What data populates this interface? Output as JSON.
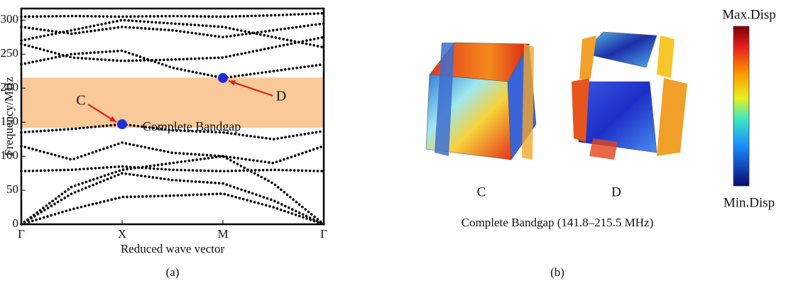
{
  "chart_data": {
    "type": "line",
    "ylabel": "Frequency/MHz",
    "xlabel": "Reduced wave vector",
    "panel_label": "(a)",
    "x": [
      0,
      0.5,
      1,
      1.5,
      2,
      2.5,
      3
    ],
    "xlim": [
      0,
      3
    ],
    "xticks": [
      {
        "value": 0,
        "label": "Γ"
      },
      {
        "value": 1,
        "label": "X"
      },
      {
        "value": 2,
        "label": "M"
      },
      {
        "value": 3,
        "label": "Γ"
      }
    ],
    "ylim": [
      0,
      317
    ],
    "yticks": [
      0,
      50,
      100,
      150,
      200,
      250,
      300
    ],
    "color": "#000000",
    "series": [
      {
        "values": [
          0,
          22,
          40,
          42,
          45,
          25,
          0
        ]
      },
      {
        "values": [
          0,
          45,
          75,
          65,
          60,
          35,
          0
        ]
      },
      {
        "values": [
          0,
          55,
          80,
          90,
          100,
          60,
          0
        ]
      },
      {
        "values": [
          78,
          80,
          85,
          80,
          78,
          80,
          78
        ]
      },
      {
        "values": [
          115,
          95,
          120,
          105,
          100,
          90,
          115
        ]
      },
      {
        "values": [
          135,
          140,
          147,
          138,
          135,
          125,
          137
        ]
      },
      {
        "values": [
          235,
          250,
          255,
          230,
          215,
          225,
          235
        ]
      },
      {
        "values": [
          265,
          245,
          240,
          242,
          245,
          260,
          275
        ]
      },
      {
        "values": [
          290,
          280,
          290,
          285,
          275,
          285,
          295
        ]
      },
      {
        "values": [
          305,
          306,
          305,
          306,
          305,
          307,
          310
        ]
      },
      {
        "values": [
          270,
          285,
          300,
          295,
          290,
          275,
          260
        ]
      }
    ],
    "bandgap": [
      141.8,
      215.5
    ],
    "bandgap_color": "#f9c99a",
    "bandgap_label": "Complete Bandgap",
    "points": [
      {
        "label": "C",
        "x": 1,
        "y": 147
      },
      {
        "label": "D",
        "x": 2,
        "y": 215
      }
    ],
    "point_color": "#1f2fd6",
    "arrow_color": "#e0201a"
  },
  "mode_shapes": {
    "labels": [
      "C",
      "D"
    ],
    "caption": "Complete Bandgap (141.8–215.5 MHz)",
    "colorbar_max": "Max.Disp",
    "colorbar_min": "Min.Disp",
    "panel_label": "(b)"
  }
}
